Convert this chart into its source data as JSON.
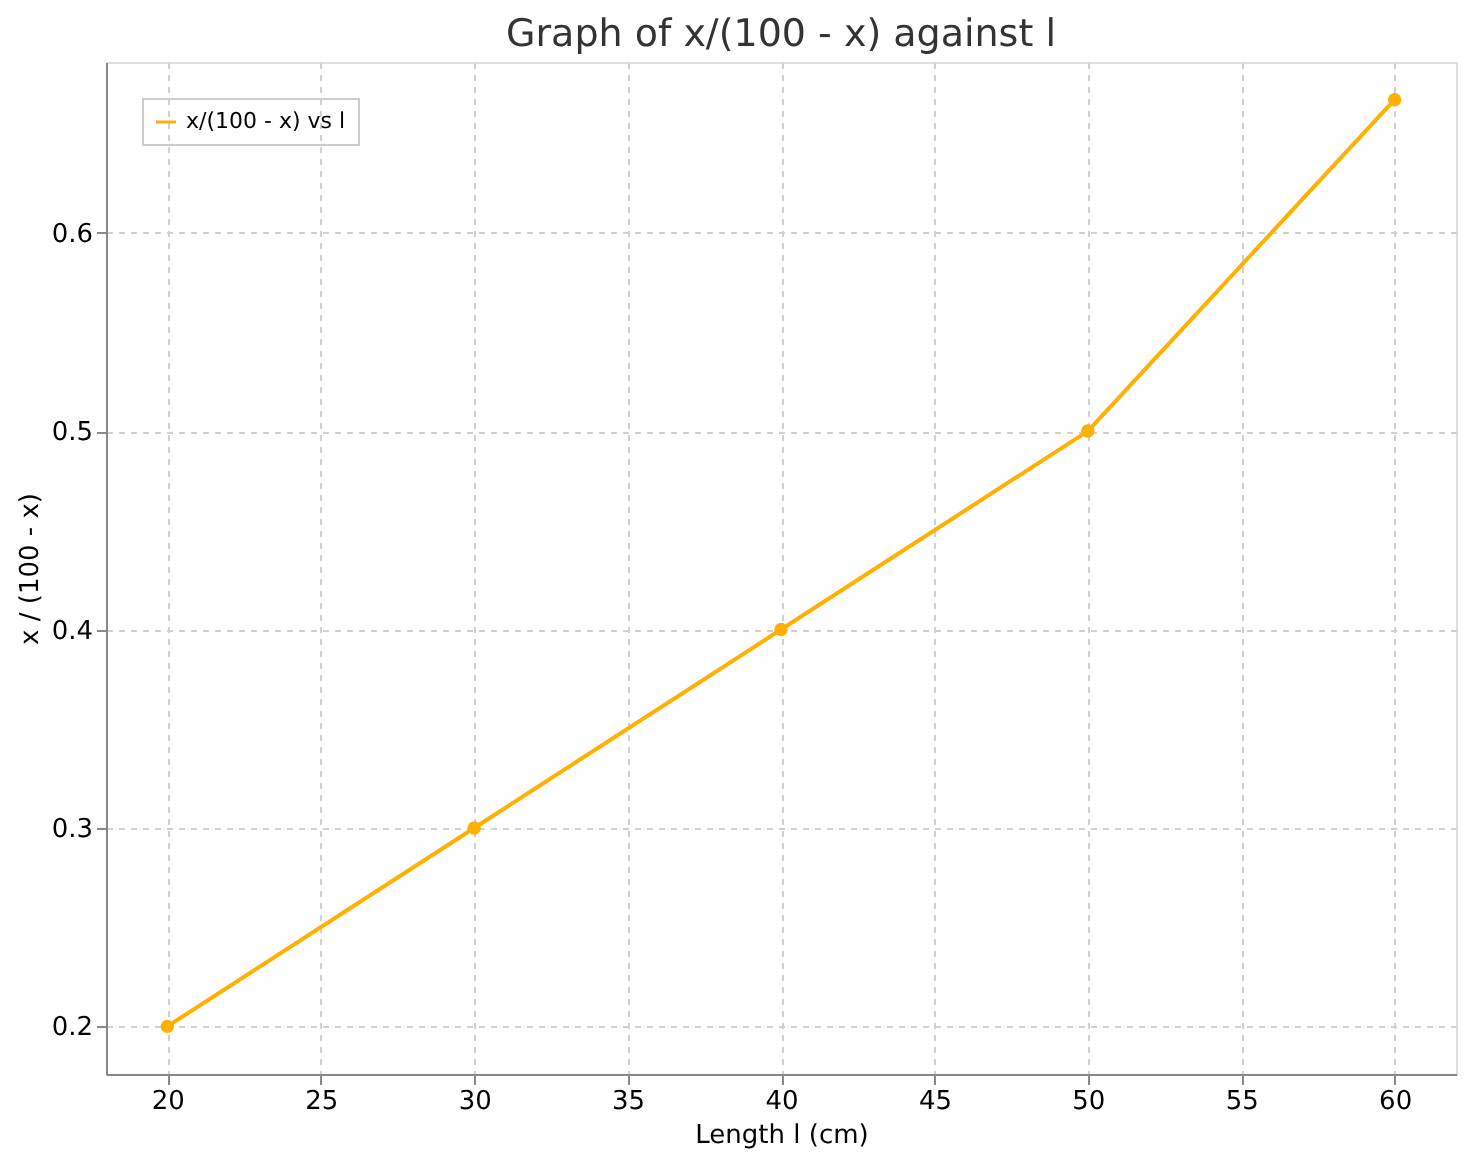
{
  "chart_data": {
    "type": "line",
    "title": "Graph of x/(100 - x) against l",
    "xlabel": "Length l (cm)",
    "ylabel": "x / (100 - x)",
    "x": [
      20,
      30,
      40,
      50,
      60
    ],
    "series": [
      {
        "name": "x/(100 - x) vs l",
        "color": "#ffb000",
        "values": [
          0.2,
          0.3,
          0.4,
          0.5,
          0.667
        ]
      }
    ],
    "xlim": [
      18,
      62
    ],
    "ylim": [
      0.176,
      0.686
    ],
    "xticks": [
      20,
      25,
      30,
      35,
      40,
      45,
      50,
      55,
      60
    ],
    "yticks": [
      0.2,
      0.3,
      0.4,
      0.5,
      0.6
    ],
    "grid": true,
    "legend": "top left",
    "marker": "circle",
    "line_style": "solid"
  }
}
